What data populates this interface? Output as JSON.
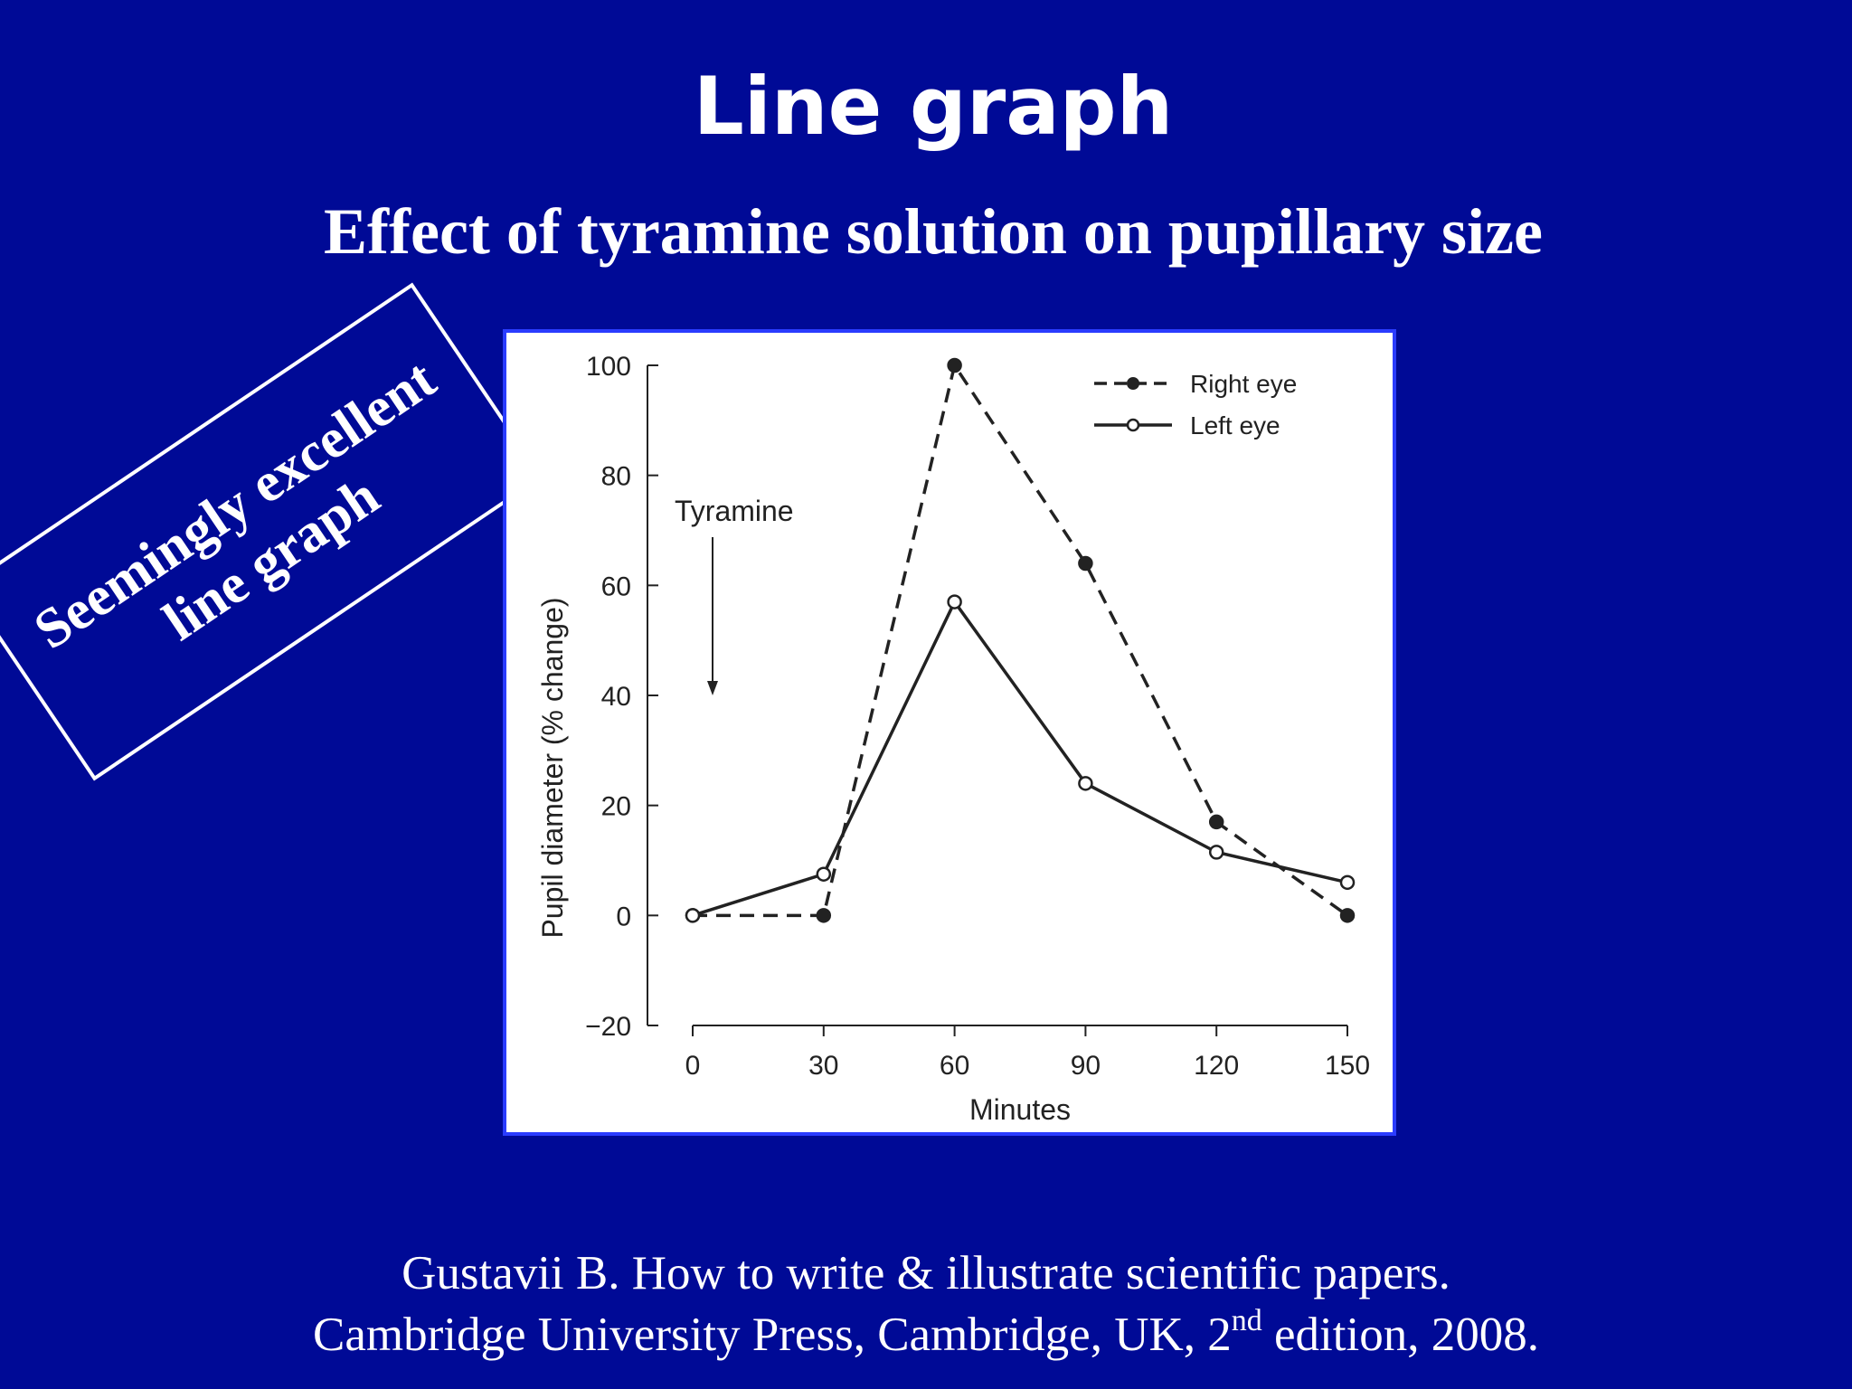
{
  "slide": {
    "title": "Line graph",
    "subtitle": "Effect of tyramine solution on pupillary size",
    "stamp_line1": "Seemingly excellent",
    "stamp_line2": "line graph",
    "citation_line1": "Gustavii B. How to write & illustrate scientific papers.",
    "citation_line2_prefix": "Cambridge University Press, Cambridge, UK, 2",
    "citation_line2_sup": "nd",
    "citation_line2_suffix": " edition, 2008."
  },
  "colors": {
    "background": "#000a96",
    "text": "#ffffff",
    "panel_border": "#2a3cff",
    "ink": "#222222"
  },
  "chart_data": {
    "type": "line",
    "title": "",
    "xlabel": "Minutes",
    "ylabel": "Pupil diameter (% change)",
    "x": [
      0,
      30,
      60,
      90,
      120,
      150
    ],
    "xticks": [
      "0",
      "30",
      "60",
      "90",
      "120",
      "150"
    ],
    "yticks": [
      "−20",
      "0",
      "20",
      "40",
      "60",
      "80",
      "100"
    ],
    "ylim": [
      -20,
      100
    ],
    "xlim": [
      0,
      150
    ],
    "grid": false,
    "legend_position": "top-right",
    "series": [
      {
        "name": "Right eye",
        "style": "dashed",
        "marker": "filled-circle",
        "values": [
          0,
          0,
          100,
          64,
          17,
          0
        ]
      },
      {
        "name": "Left eye",
        "style": "solid",
        "marker": "open-circle",
        "values": [
          0,
          7.5,
          57,
          24,
          11.5,
          6
        ]
      }
    ],
    "annotations": [
      {
        "text": "Tyramine",
        "x": 5,
        "y": 75,
        "arrow_to_y": 40
      }
    ]
  }
}
